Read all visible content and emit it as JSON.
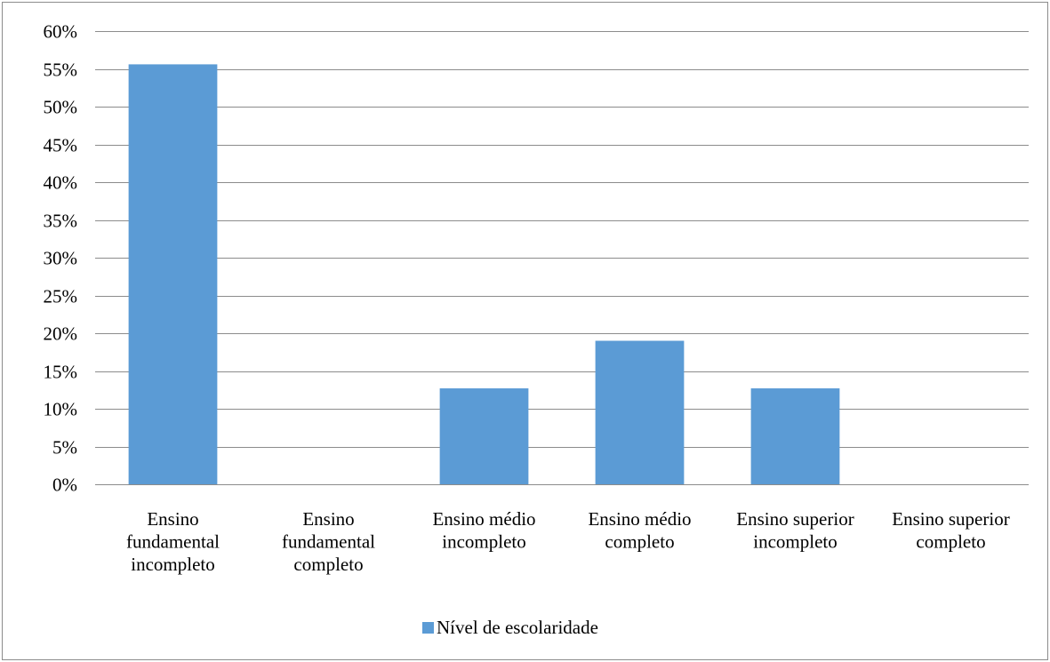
{
  "chart_data": {
    "type": "bar",
    "categories": [
      [
        "Ensino",
        "fundamental",
        "incompleto"
      ],
      [
        "Ensino",
        "fundamental",
        "completo"
      ],
      [
        "Ensino médio",
        "incompleto"
      ],
      [
        "Ensino médio",
        "completo"
      ],
      [
        "Ensino superior",
        "incompleto"
      ],
      [
        "Ensino superior",
        "completo"
      ]
    ],
    "series": [
      {
        "name": "Nível de escolaridade",
        "values": [
          55.6,
          0,
          12.7,
          19.0,
          12.7,
          0
        ]
      }
    ],
    "ylim": [
      0,
      60
    ],
    "ytick_step": 5,
    "ytick_suffix": "%",
    "grid": true,
    "legend_position": "bottom",
    "colors": {
      "bar": "#5b9bd5",
      "grid": "#8c8c8c",
      "axis": "#8c8c8c",
      "border": "#8c8c8c"
    }
  }
}
